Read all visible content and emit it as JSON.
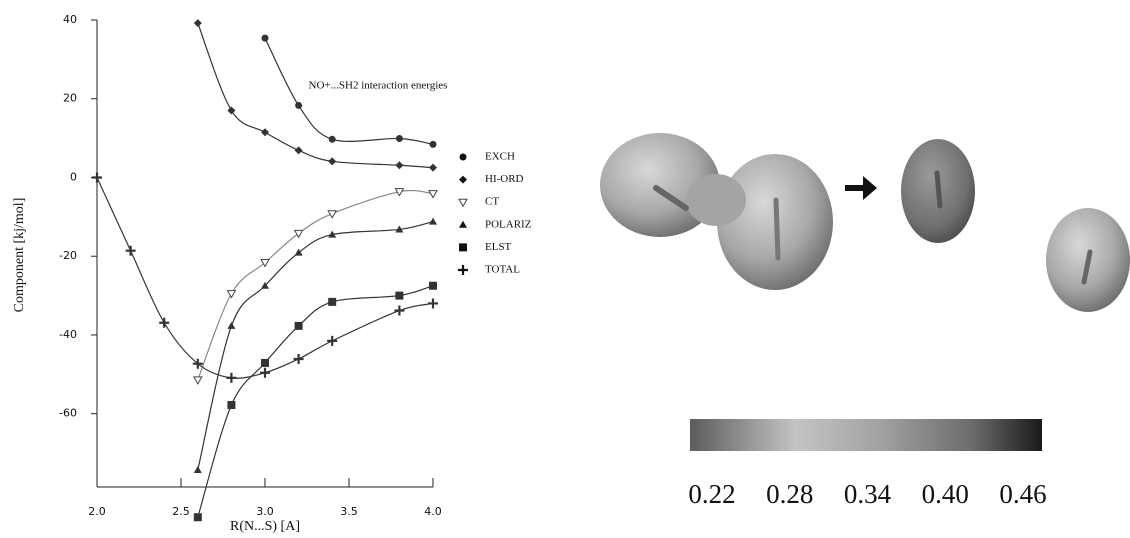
{
  "chart_data": {
    "type": "line",
    "annotation": "NO+...SH2 interaction energies",
    "xlabel": "R(N...S) [A]",
    "ylabel": "Component [kj/mol]",
    "xlim": [
      2.0,
      4.0
    ],
    "ylim": [
      -79,
      40
    ],
    "xticks": [
      {
        "value": 2,
        "label": "2.0"
      },
      2.5,
      {
        "value": 3,
        "label": "3.0"
      },
      3.5,
      {
        "value": 4,
        "label": "4.0"
      }
    ],
    "yticks": [
      -60,
      -40,
      -20,
      0,
      20,
      40
    ],
    "series": [
      {
        "name": "EXCH",
        "marker": "circle",
        "color": "#333333",
        "x": [
          3.0,
          3.2,
          3.4,
          3.8,
          4.0
        ],
        "values": [
          35.4,
          18.3,
          9.7,
          9.9,
          8.4
        ]
      },
      {
        "name": "HI-ORD",
        "marker": "diamond",
        "color": "#333333",
        "x": [
          2.6,
          2.8,
          3.0,
          3.2,
          3.4,
          3.8,
          4.0
        ],
        "values": [
          39.2,
          17,
          11.5,
          6.9,
          4.1,
          3.1,
          2.5
        ]
      },
      {
        "name": "CT",
        "marker": "triangle-down-open",
        "color": "#888888",
        "x": [
          2.6,
          2.8,
          3.0,
          3.2,
          3.4,
          3.8,
          4.0
        ],
        "values": [
          -51.4,
          -29.5,
          -21.6,
          -14.2,
          -9.2,
          -3.6,
          -4.1
        ]
      },
      {
        "name": "POLARIZ",
        "marker": "triangle",
        "color": "#333333",
        "x": [
          2.6,
          2.8,
          3.0,
          3.2,
          3.4,
          3.8,
          4.0
        ],
        "values": [
          -74.3,
          -37.7,
          -27.5,
          -19.1,
          -14.5,
          -13.2,
          -11.2
        ]
      },
      {
        "name": "ELST",
        "marker": "square",
        "color": "#333333",
        "x": [
          2.6,
          2.8,
          3.0,
          3.2,
          3.4,
          3.8,
          4.0
        ],
        "values": [
          -86.3,
          -57.8,
          -47.1,
          -37.7,
          -31.6,
          -30,
          -27.5
        ]
      },
      {
        "name": "TOTAL",
        "marker": "plus",
        "color": "#333333",
        "x": [
          2.0,
          2.2,
          2.4,
          2.6,
          2.8,
          3.0,
          3.2,
          3.4,
          3.8,
          4.0
        ],
        "values": [
          0,
          -18.6,
          -36.9,
          -47.3,
          -50.9,
          -49.6,
          -46.1,
          -41.5,
          -33.8,
          -32
        ]
      }
    ],
    "colorbar_ticks": [
      {
        "value": 0.22,
        "label": "0.22"
      },
      {
        "value": 0.28,
        "label": "0.28"
      },
      {
        "value": 0.34,
        "label": "0.34"
      },
      {
        "value": 0.4,
        "label": "0.40"
      },
      {
        "value": 0.46,
        "label": "0.46"
      }
    ]
  }
}
